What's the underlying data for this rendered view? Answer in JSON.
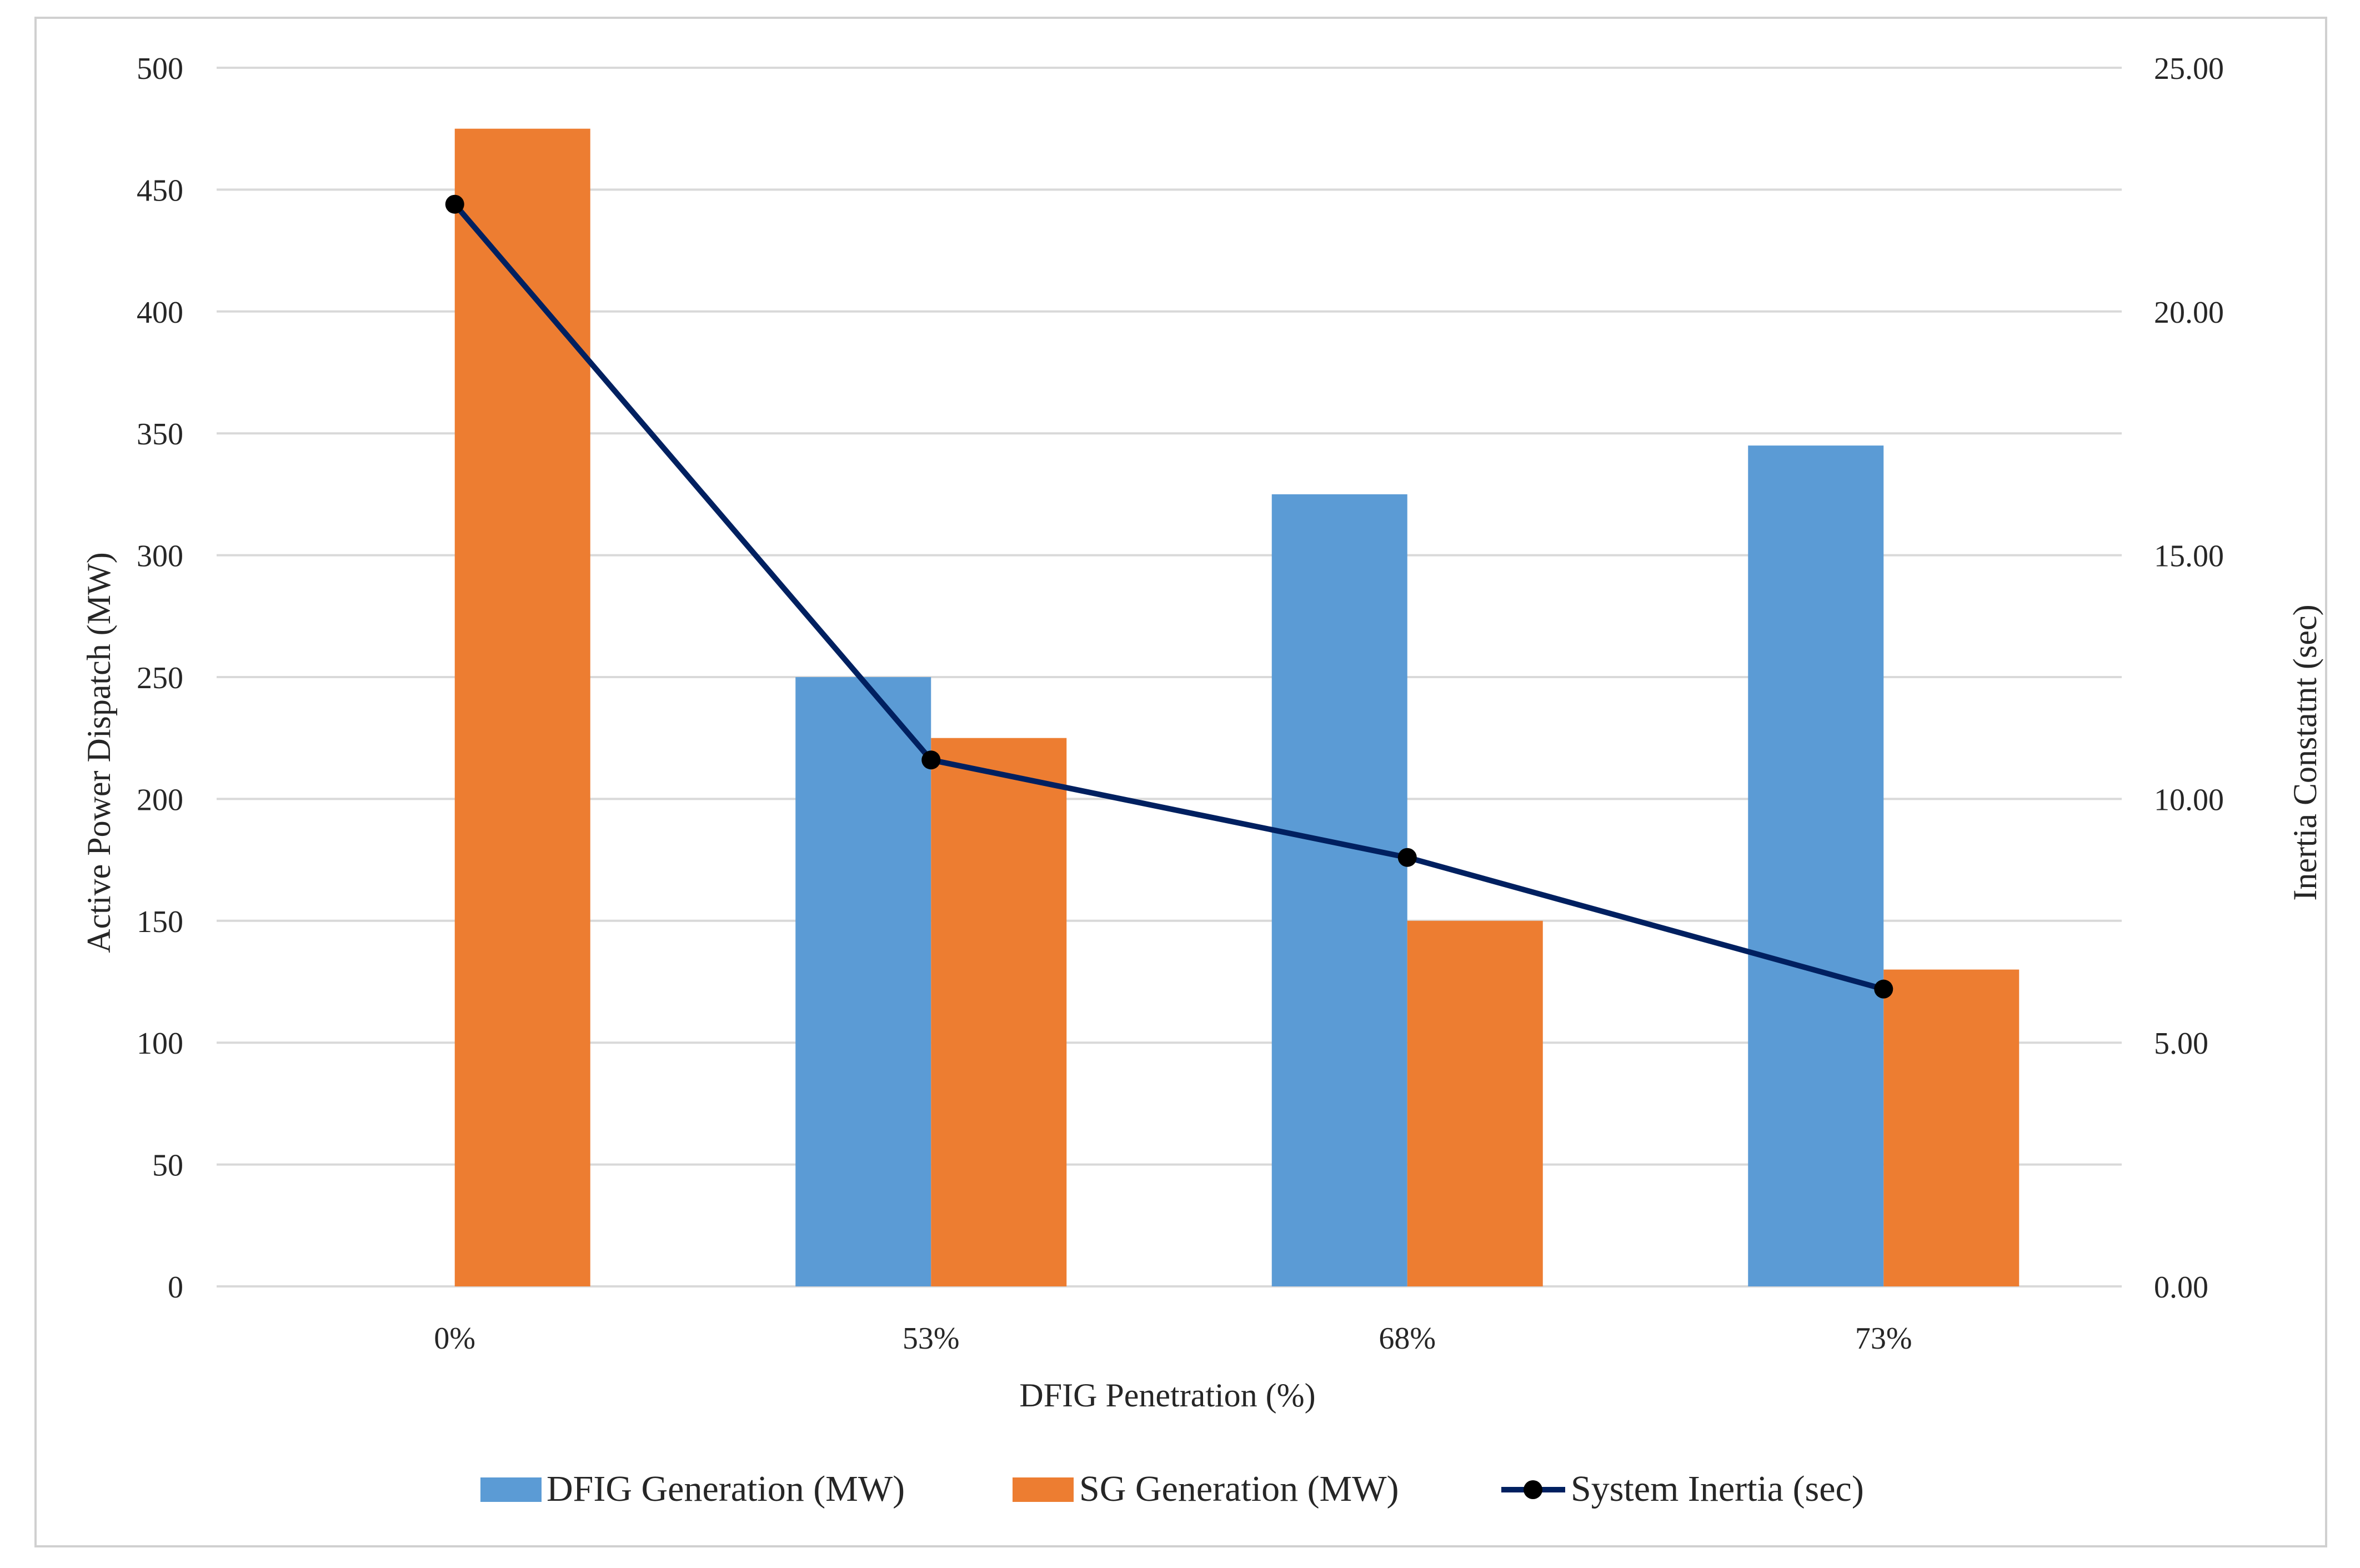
{
  "chart_data": {
    "type": "bar",
    "categories": [
      "0%",
      "53%",
      "68%",
      "73%"
    ],
    "series": [
      {
        "name": "DFIG Generation (MW)",
        "kind": "bar",
        "axis": "left",
        "color": "#5b9bd5",
        "values": [
          0,
          250,
          325,
          345
        ]
      },
      {
        "name": "SG Generation (MW)",
        "kind": "bar",
        "axis": "left",
        "color": "#ed7d31",
        "values": [
          475,
          225,
          150,
          130
        ]
      },
      {
        "name": "System Inertia (sec)",
        "kind": "line",
        "axis": "right",
        "color": "#002060",
        "marker_color": "#000000",
        "values": [
          22.2,
          10.8,
          8.8,
          6.1
        ]
      }
    ],
    "xlabel": "DFIG Penetration (%)",
    "ylabel": "Active Power Dispatch (MW)",
    "y2label": "Inertia Constatnt (sec)",
    "ylim": [
      0,
      500
    ],
    "y2lim": [
      0,
      25
    ],
    "yticks": [
      "0",
      "50",
      "100",
      "150",
      "200",
      "250",
      "300",
      "350",
      "400",
      "450",
      "500"
    ],
    "y2ticks": [
      "0.00",
      "5.00",
      "10.00",
      "15.00",
      "20.00",
      "25.00"
    ],
    "grid": true,
    "legend_position": "bottom-center",
    "gridline_color": "#d9d9d9"
  }
}
